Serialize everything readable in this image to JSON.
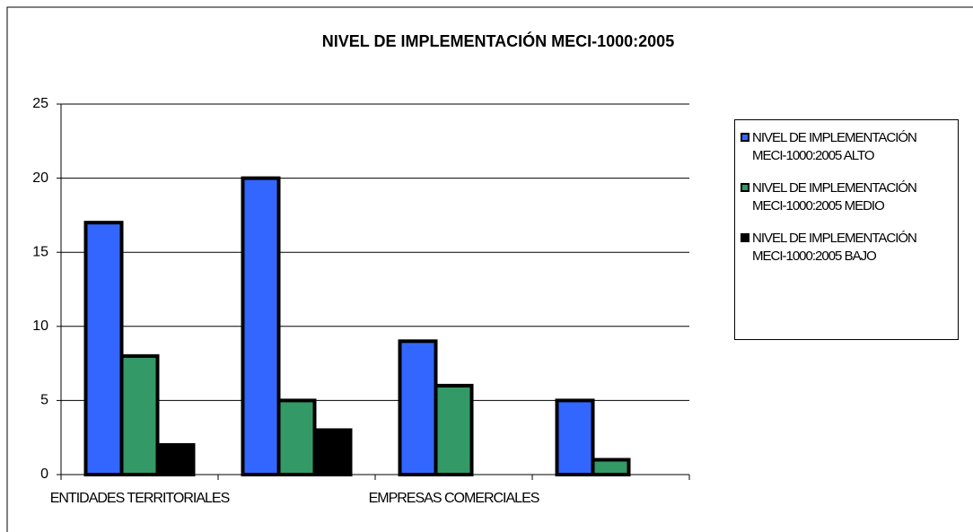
{
  "chart_data": {
    "type": "bar",
    "title": "NIVEL DE IMPLEMENTACIÓN MECI-1000:2005",
    "categories": [
      "ENTIDADES TERRITORIALES",
      null,
      "EMPRESAS COMERCIALES",
      null
    ],
    "series": [
      {
        "name": "NIVEL DE IMPLEMENTACIÓN MECI-1000:2005 ALTO",
        "color": "#3366ff",
        "values": [
          17,
          20,
          9,
          5
        ]
      },
      {
        "name": "NIVEL DE IMPLEMENTACIÓN MECI-1000:2005 MEDIO",
        "color": "#339966",
        "values": [
          8,
          5,
          6,
          1
        ]
      },
      {
        "name": "NIVEL DE IMPLEMENTACIÓN MECI-1000:2005 BAJO",
        "color": "#000000",
        "values": [
          2,
          3,
          0,
          0
        ]
      }
    ],
    "ylim": [
      0,
      25
    ],
    "yticks": [
      0,
      5,
      10,
      15,
      20,
      25
    ],
    "grid": true,
    "legend": "right"
  }
}
